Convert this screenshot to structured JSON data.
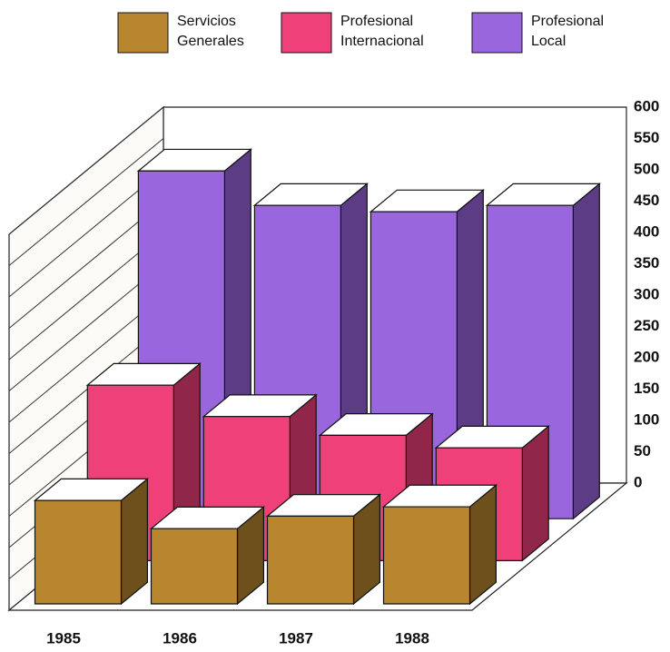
{
  "chart_data": {
    "type": "bar3d",
    "categories": [
      "1985",
      "1986",
      "1987",
      "1988"
    ],
    "series": [
      {
        "name": "Servicios Generales",
        "color": "#b8862e",
        "values": [
          165,
          120,
          140,
          155
        ]
      },
      {
        "name": "Profesional Internacional",
        "color": "#f0407a",
        "values": [
          280,
          230,
          200,
          180
        ]
      },
      {
        "name": "Profesional Local",
        "color": "#9966dd",
        "values": [
          555,
          500,
          490,
          500
        ]
      }
    ],
    "ylim": [
      0,
      600
    ],
    "yticks": [
      0,
      50,
      100,
      150,
      200,
      250,
      300,
      350,
      400,
      450,
      500,
      550,
      600
    ],
    "grid": true
  }
}
